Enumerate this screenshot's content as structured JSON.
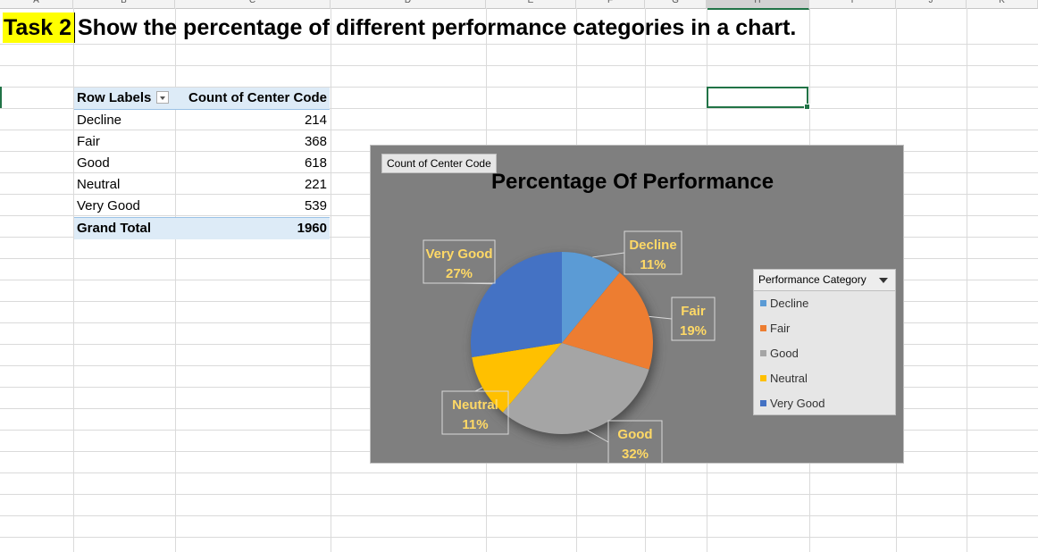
{
  "columns": [
    "A",
    "B",
    "C",
    "D",
    "E",
    "F",
    "G",
    "H",
    "I",
    "J",
    "K"
  ],
  "selected_column": "H",
  "task": {
    "label": "Task 2",
    "title": "Show the percentage of different performance categories in a chart."
  },
  "pivot": {
    "header_row_labels": "Row Labels",
    "header_value": "Count of Center Code",
    "rows": [
      {
        "label": "Decline",
        "value": "214"
      },
      {
        "label": "Fair",
        "value": "368"
      },
      {
        "label": "Good",
        "value": "618"
      },
      {
        "label": "Neutral",
        "value": "221"
      },
      {
        "label": "Very Good",
        "value": "539"
      }
    ],
    "total_label": "Grand Total",
    "total_value": "1960"
  },
  "chart": {
    "field_button": "Count of Center Code",
    "legend_title": "Performance Category",
    "background": "#7f7f7f",
    "label_color": "#ffd966"
  },
  "chart_data": {
    "type": "pie",
    "title": "Percentage Of Performance",
    "categories": [
      "Decline",
      "Fair",
      "Good",
      "Neutral",
      "Very Good"
    ],
    "values": [
      214,
      368,
      618,
      221,
      539
    ],
    "percent_labels": [
      "11%",
      "19%",
      "32%",
      "11%",
      "27%"
    ],
    "colors": [
      "#5b9bd5",
      "#ed7d31",
      "#a5a5a5",
      "#ffc000",
      "#4472c4"
    ],
    "legend_position": "right"
  }
}
